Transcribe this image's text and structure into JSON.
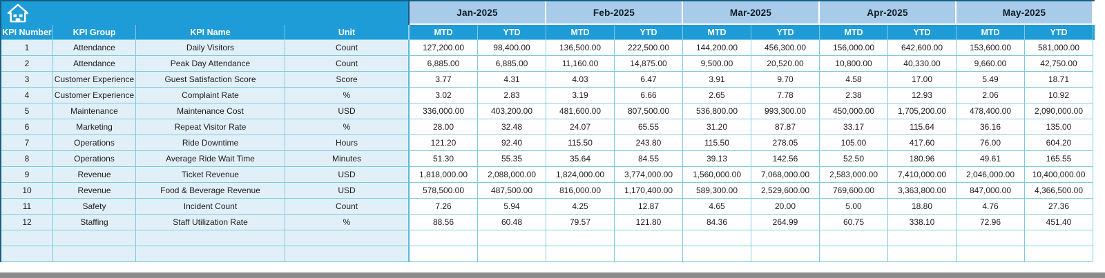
{
  "toolbar": {
    "home_icon": "home"
  },
  "table": {
    "column_headers": [
      "KPI Number",
      "KPI Group",
      "KPI Name",
      "Unit"
    ],
    "months": [
      "Jan-2025",
      "Feb-2025",
      "Mar-2025",
      "Apr-2025",
      "May-2025"
    ],
    "period_headers": [
      "MTD",
      "YTD"
    ],
    "rows": [
      {
        "kpi_number": "1",
        "kpi_group": "Attendance",
        "kpi_name": "Daily Visitors",
        "unit": "Count",
        "values": [
          "127,200.00",
          "98,400.00",
          "136,500.00",
          "222,500.00",
          "144,200.00",
          "456,300.00",
          "156,000.00",
          "642,600.00",
          "153,600.00",
          "581,000.00"
        ]
      },
      {
        "kpi_number": "2",
        "kpi_group": "Attendance",
        "kpi_name": "Peak Day Attendance",
        "unit": "Count",
        "values": [
          "6,885.00",
          "6,885.00",
          "11,160.00",
          "14,875.00",
          "9,500.00",
          "20,520.00",
          "10,800.00",
          "40,330.00",
          "9,660.00",
          "42,750.00"
        ]
      },
      {
        "kpi_number": "3",
        "kpi_group": "Customer Experience",
        "kpi_name": "Guest Satisfaction Score",
        "unit": "Score",
        "values": [
          "3.77",
          "4.31",
          "4.03",
          "6.47",
          "3.91",
          "9.70",
          "4.58",
          "17.00",
          "5.49",
          "18.71"
        ]
      },
      {
        "kpi_number": "4",
        "kpi_group": "Customer Experience",
        "kpi_name": "Complaint Rate",
        "unit": "%",
        "values": [
          "3.02",
          "2.83",
          "3.19",
          "6.66",
          "2.65",
          "7.78",
          "2.38",
          "12.93",
          "2.06",
          "10.92"
        ]
      },
      {
        "kpi_number": "5",
        "kpi_group": "Maintenance",
        "kpi_name": "Maintenance Cost",
        "unit": "USD",
        "values": [
          "336,000.00",
          "403,200.00",
          "481,600.00",
          "807,500.00",
          "536,800.00",
          "993,300.00",
          "450,000.00",
          "1,705,200.00",
          "478,400.00",
          "2,090,000.00"
        ]
      },
      {
        "kpi_number": "6",
        "kpi_group": "Marketing",
        "kpi_name": "Repeat Visitor Rate",
        "unit": "%",
        "values": [
          "28.00",
          "32.48",
          "24.07",
          "65.55",
          "31.20",
          "87.87",
          "33.17",
          "115.64",
          "36.16",
          "135.00"
        ]
      },
      {
        "kpi_number": "7",
        "kpi_group": "Operations",
        "kpi_name": "Ride Downtime",
        "unit": "Hours",
        "values": [
          "121.20",
          "92.40",
          "115.50",
          "243.80",
          "115.50",
          "278.05",
          "105.00",
          "417.60",
          "76.00",
          "604.20"
        ]
      },
      {
        "kpi_number": "8",
        "kpi_group": "Operations",
        "kpi_name": "Average Ride Wait Time",
        "unit": "Minutes",
        "values": [
          "51.30",
          "55.35",
          "35.64",
          "84.55",
          "39.13",
          "142.56",
          "52.50",
          "180.96",
          "49.61",
          "165.55"
        ]
      },
      {
        "kpi_number": "9",
        "kpi_group": "Revenue",
        "kpi_name": "Ticket Revenue",
        "unit": "USD",
        "values": [
          "1,818,000.00",
          "2,088,000.00",
          "1,824,000.00",
          "3,774,000.00",
          "1,560,000.00",
          "7,068,000.00",
          "2,583,000.00",
          "7,410,000.00",
          "2,046,000.00",
          "10,400,000.00"
        ]
      },
      {
        "kpi_number": "10",
        "kpi_group": "Revenue",
        "kpi_name": "Food & Beverage Revenue",
        "unit": "USD",
        "values": [
          "578,500.00",
          "487,500.00",
          "816,000.00",
          "1,170,400.00",
          "589,300.00",
          "2,529,600.00",
          "769,600.00",
          "3,363,800.00",
          "847,000.00",
          "4,366,500.00"
        ]
      },
      {
        "kpi_number": "11",
        "kpi_group": "Safety",
        "kpi_name": "Incident Count",
        "unit": "Count",
        "values": [
          "7.26",
          "5.94",
          "4.25",
          "12.87",
          "4.65",
          "20.00",
          "5.00",
          "18.80",
          "4.76",
          "27.36"
        ]
      },
      {
        "kpi_number": "12",
        "kpi_group": "Staffing",
        "kpi_name": "Staff Utilization Rate",
        "unit": "%",
        "values": [
          "88.56",
          "60.48",
          "79.57",
          "121.80",
          "84.36",
          "264.99",
          "60.75",
          "338.10",
          "72.96",
          "451.40"
        ]
      }
    ],
    "empty_row_count": 2
  },
  "colors": {
    "header_blue": "#1E9CD8",
    "month_band_blue": "#A9CBEA",
    "row_tint_blue": "#E1F0F8",
    "grid_cyan": "#7CCBE0",
    "outline_dark": "#156082",
    "bottom_bar_gray": "#8C8C8C"
  }
}
